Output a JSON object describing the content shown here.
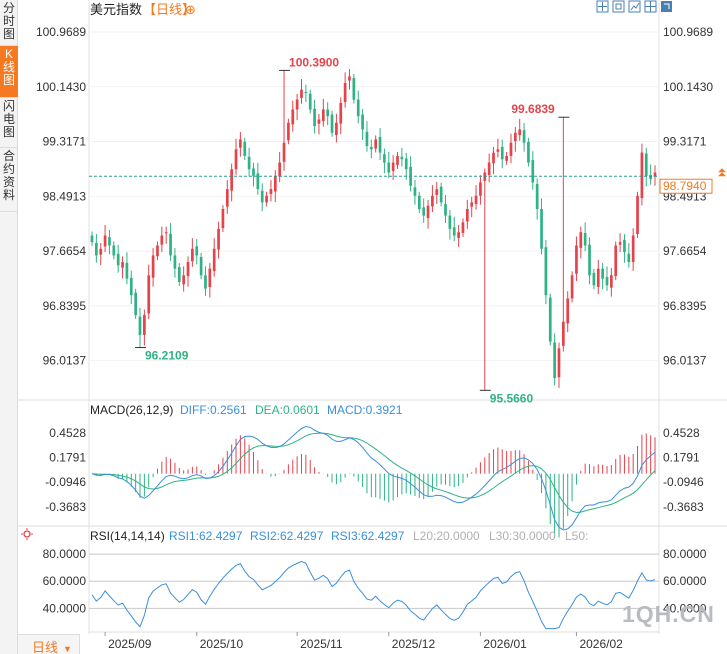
{
  "sidebar": {
    "tabs": [
      {
        "label": "分时图",
        "active": false
      },
      {
        "label": "K线图",
        "active": true
      },
      {
        "label": "闪电图",
        "active": false
      },
      {
        "label": "合约资料",
        "active": false
      }
    ]
  },
  "header": {
    "title": "美元指数",
    "period_tag": "【日线】",
    "add_symbol": "⊕",
    "tools": [
      "crosshair-icon",
      "fit-icon",
      "indicator-icon",
      "layout-icon",
      "expand-icon"
    ]
  },
  "period_button": {
    "label": "日线"
  },
  "watermark": "1QH.CN",
  "colors": {
    "up": "#e5434c",
    "down": "#2fb383",
    "accent": "#f47920",
    "diff": "#3a8fdc",
    "dea": "#2fb383",
    "rsi": "#3a8fdc"
  },
  "price": {
    "axis_ticks": [
      100.9689,
      100.143,
      99.3171,
      98.4913,
      97.6654,
      96.8395,
      96.0137
    ],
    "axis_labels": [
      "100.9689",
      "100.1430",
      "99.3171",
      "98.4913",
      "97.6654",
      "96.8395",
      "96.0137"
    ],
    "ylim": [
      95.45,
      101.15
    ],
    "current_value": 98.794,
    "current_label": "98.7940",
    "markers": [
      {
        "label": "100.3900",
        "value": 100.39,
        "index": 44,
        "type": "high"
      },
      {
        "label": "99.6839",
        "value": 99.6839,
        "index": 108,
        "type": "high"
      },
      {
        "label": "96.2109",
        "value": 96.2109,
        "index": 11,
        "type": "low"
      },
      {
        "label": "95.5660",
        "value": 95.566,
        "index": 90,
        "type": "low"
      }
    ]
  },
  "macd": {
    "header_label": "MACD(26,12,9)",
    "diff_label": "DIFF:0.2561",
    "dea_label": "DEA:0.0601",
    "macd_label": "MACD:0.3921",
    "axis_ticks": [
      0.4528,
      0.1791,
      -0.0946,
      -0.3683
    ],
    "axis_labels": [
      "0.4528",
      "0.1791",
      "-0.0946",
      "-0.3683"
    ],
    "ylim": [
      -0.56,
      0.62
    ]
  },
  "rsi": {
    "header_label": "RSI(14,14,14)",
    "rsi1_label": "RSI1:62.4297",
    "rsi2_label": "RSI2:62.4297",
    "rsi3_label": "RSI3:62.4297",
    "l20_label": "L20:20.0000",
    "l30_label": "L30:30.0000",
    "l50_label": "L50:",
    "axis_ticks": [
      80,
      60,
      40
    ],
    "axis_labels": [
      "80.0000",
      "60.0000",
      "40.0000"
    ],
    "ylim": [
      24,
      86
    ]
  },
  "chart_data": {
    "type": "candlestick",
    "title": "美元指数【日线】",
    "x_labels": [
      {
        "label": "2025/09",
        "index": 3
      },
      {
        "label": "2025/10",
        "index": 24
      },
      {
        "label": "2025/11",
        "index": 47
      },
      {
        "label": "2025/12",
        "index": 68
      },
      {
        "label": "2026/01",
        "index": 89
      },
      {
        "label": "2026/02",
        "index": 111
      }
    ],
    "close": [
      97.8,
      97.6,
      97.7,
      97.9,
      97.75,
      97.6,
      97.45,
      97.5,
      97.25,
      97.0,
      96.7,
      96.4,
      96.7,
      97.3,
      97.6,
      97.75,
      97.9,
      97.95,
      97.6,
      97.4,
      97.2,
      97.3,
      97.5,
      97.7,
      97.6,
      97.3,
      97.1,
      97.4,
      97.7,
      98.0,
      98.3,
      98.6,
      98.9,
      99.2,
      99.35,
      99.1,
      98.9,
      98.8,
      98.6,
      98.4,
      98.5,
      98.6,
      98.8,
      99.0,
      99.3,
      99.6,
      99.8,
      99.95,
      100.1,
      100.05,
      99.8,
      99.55,
      99.65,
      99.8,
      99.7,
      99.45,
      99.6,
      99.9,
      100.2,
      100.3,
      99.95,
      99.7,
      99.5,
      99.25,
      99.2,
      99.35,
      99.15,
      99.0,
      98.85,
      99.0,
      99.1,
      99.05,
      98.9,
      98.65,
      98.5,
      98.3,
      98.2,
      98.35,
      98.5,
      98.6,
      98.4,
      98.2,
      98.0,
      97.9,
      97.95,
      98.1,
      98.3,
      98.4,
      98.5,
      98.7,
      98.85,
      99.0,
      99.15,
      99.2,
      99.05,
      99.1,
      99.3,
      99.45,
      99.5,
      99.3,
      99.0,
      98.7,
      98.3,
      97.7,
      97.0,
      96.3,
      95.75,
      96.2,
      96.6,
      96.95,
      97.3,
      97.75,
      97.95,
      97.75,
      97.3,
      97.15,
      97.4,
      97.25,
      97.15,
      97.3,
      97.75,
      97.8,
      97.65,
      97.5,
      97.9,
      98.5,
      99.15,
      98.8,
      98.75,
      98.85
    ],
    "ohlc_note": "open/high/low derived from closes; price ylim [95.45, 101.15]",
    "markers": [
      {
        "label": "100.3900",
        "index": 44,
        "value": 100.39
      },
      {
        "label": "99.6839",
        "index": 108,
        "value": 99.6839
      },
      {
        "label": "96.2109",
        "index": 11,
        "value": 96.2109
      },
      {
        "label": "95.5660",
        "index": 90,
        "value": 95.566
      }
    ]
  }
}
